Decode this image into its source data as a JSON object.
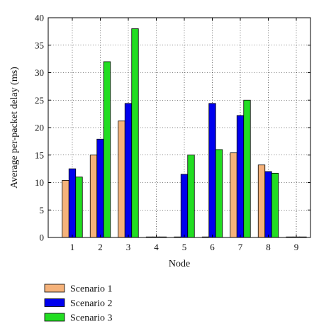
{
  "chart_data": {
    "type": "bar",
    "title": "",
    "xlabel": "Node",
    "ylabel": "Average per-packet delay (ms)",
    "categories": [
      "1",
      "2",
      "3",
      "4",
      "5",
      "6",
      "7",
      "8",
      "9"
    ],
    "series": [
      {
        "name": "Scenario 1",
        "color": "#f5b27a",
        "values": [
          10.4,
          15.0,
          21.2,
          0,
          0,
          0,
          15.4,
          13.2,
          0
        ]
      },
      {
        "name": "Scenario 2",
        "color": "#0000ee",
        "values": [
          12.5,
          17.9,
          24.4,
          0,
          11.5,
          24.4,
          22.2,
          12.0,
          0
        ]
      },
      {
        "name": "Scenario 3",
        "color": "#22dd22",
        "values": [
          11.0,
          32.0,
          38.0,
          0,
          15.0,
          16.0,
          25.0,
          11.7,
          0
        ]
      }
    ],
    "ylim": [
      0,
      40
    ],
    "yticks": [
      "0",
      "5",
      "10",
      "15",
      "20",
      "25",
      "30",
      "35",
      "40"
    ],
    "grid": true,
    "legend_position": "bottom-left"
  }
}
